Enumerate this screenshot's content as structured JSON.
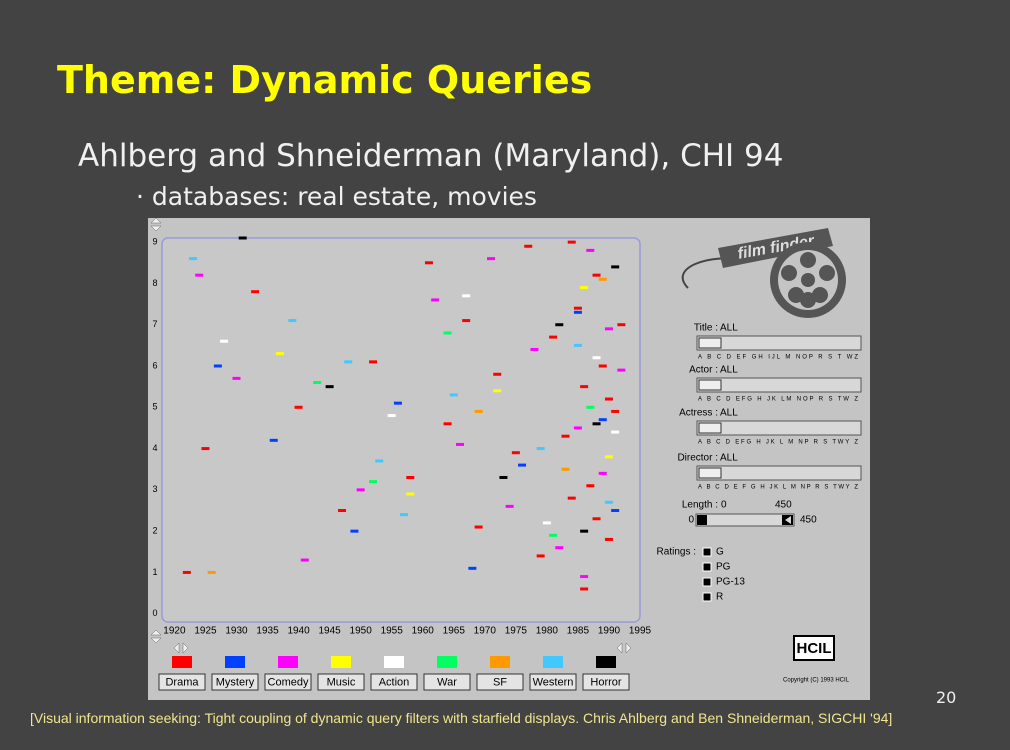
{
  "slide": {
    "title": "Theme: Dynamic Queries",
    "subtitle": "Ahlberg and Shneiderman (Maryland), CHI 94",
    "bullet": "· databases: real estate, movies",
    "page_number": "20",
    "citation": "[Visual information seeking: Tight coupling of dynamic query filters with starfield displays. Chris Ahlberg and Ben Shneiderman, SIGCHI '94]"
  },
  "screenshot": {
    "logo": "film finder",
    "starfield": {
      "xlim": [
        1918,
        1995
      ],
      "ylim": [
        -0.2,
        9.1
      ],
      "xticks": [
        1920,
        1925,
        1930,
        1935,
        1940,
        1945,
        1950,
        1955,
        1960,
        1965,
        1970,
        1975,
        1980,
        1985,
        1990,
        1995
      ],
      "yticks": [
        0,
        1,
        2,
        3,
        4,
        5,
        6,
        7,
        8,
        9
      ],
      "series": [
        {
          "name": "Drama",
          "color": "#ff0000",
          "x": [
            1922,
            1925,
            1933,
            1940,
            1947,
            1952,
            1958,
            1961,
            1964,
            1967,
            1969,
            1972,
            1975,
            1977,
            1979,
            1981,
            1983,
            1984,
            1985,
            1986,
            1987,
            1988,
            1989,
            1990,
            1991,
            1992,
            1986,
            1988,
            1990,
            1984
          ],
          "y": [
            1.0,
            4.0,
            7.8,
            5.0,
            2.5,
            6.1,
            3.3,
            8.5,
            4.6,
            7.1,
            2.1,
            5.8,
            3.9,
            8.9,
            1.4,
            6.7,
            4.3,
            2.8,
            7.4,
            5.5,
            3.1,
            8.2,
            6.0,
            1.8,
            4.9,
            7.0,
            0.6,
            2.3,
            5.2,
            9.0
          ]
        },
        {
          "name": "Mystery",
          "color": "#0040ff",
          "x": [
            1927,
            1936,
            1949,
            1956,
            1968,
            1976,
            1985,
            1989,
            1991
          ],
          "y": [
            6.0,
            4.2,
            2.0,
            5.1,
            1.1,
            3.6,
            7.3,
            4.7,
            2.5
          ]
        },
        {
          "name": "Comedy",
          "color": "#ff00ff",
          "x": [
            1924,
            1930,
            1941,
            1950,
            1962,
            1966,
            1971,
            1974,
            1978,
            1982,
            1985,
            1987,
            1989,
            1990,
            1992,
            1986
          ],
          "y": [
            8.2,
            5.7,
            1.3,
            3.0,
            7.6,
            4.1,
            8.6,
            2.6,
            6.4,
            1.6,
            4.5,
            8.8,
            3.4,
            6.9,
            5.9,
            0.9
          ]
        },
        {
          "name": "Music",
          "color": "#ffff00",
          "x": [
            1937,
            1958,
            1972,
            1986,
            1990
          ],
          "y": [
            6.3,
            2.9,
            5.4,
            7.9,
            3.8
          ]
        },
        {
          "name": "Action",
          "color": "#ffffff",
          "x": [
            1928,
            1955,
            1967,
            1980,
            1988,
            1991
          ],
          "y": [
            6.6,
            4.8,
            7.7,
            2.2,
            6.2,
            4.4
          ]
        },
        {
          "name": "War",
          "color": "#00ff60",
          "x": [
            1943,
            1952,
            1964,
            1981,
            1987
          ],
          "y": [
            5.6,
            3.2,
            6.8,
            1.9,
            5.0
          ]
        },
        {
          "name": "SF",
          "color": "#ff9900",
          "x": [
            1926,
            1969,
            1983,
            1989
          ],
          "y": [
            1.0,
            4.9,
            3.5,
            8.1
          ]
        },
        {
          "name": "Western",
          "color": "#40c8ff",
          "x": [
            1923,
            1939,
            1948,
            1953,
            1957,
            1965,
            1979,
            1985,
            1990
          ],
          "y": [
            8.6,
            7.1,
            6.1,
            3.7,
            2.4,
            5.3,
            4.0,
            6.5,
            2.7
          ]
        },
        {
          "name": "Horror",
          "color": "#000000",
          "x": [
            1931,
            1945,
            1973,
            1982,
            1986,
            1988,
            1991
          ],
          "y": [
            9.1,
            5.5,
            3.3,
            7.0,
            2.0,
            4.6,
            8.4
          ]
        }
      ]
    },
    "filters": [
      {
        "label": "Title :",
        "value": "ALL",
        "letters": "A B C D EF GH IJL M NOP R S T WZ"
      },
      {
        "label": "Actor :",
        "value": "ALL",
        "letters": "A B C D EFG H JK LM NOP R S TW Z"
      },
      {
        "label": "Actress :",
        "value": "ALL",
        "letters": "A B C D EFG H JK L M NP R S TWY Z"
      },
      {
        "label": "Director :",
        "value": "ALL",
        "letters": "A B C D E F G H JK L M NP R S TWY Z"
      }
    ],
    "length": {
      "label": "Length :",
      "min": 0,
      "max": 450
    },
    "ratings": {
      "label": "Ratings :",
      "options": [
        "G",
        "PG",
        "PG-13",
        "R"
      ]
    },
    "lab": "HCIL",
    "copyright": "Copyright (C) 1993 HCIL"
  }
}
